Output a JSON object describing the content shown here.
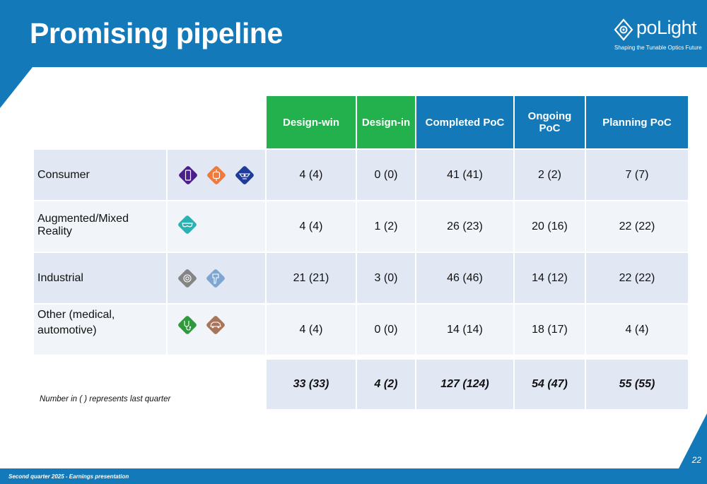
{
  "slide": {
    "title": "Promising pipeline",
    "page_number": "22",
    "footer": "Second quarter 2025 - Earnings presentation",
    "note": "Number in ( ) represents last quarter"
  },
  "logo": {
    "name": "poLight",
    "tagline": "Shaping the Tunable Optics Future"
  },
  "colors": {
    "brand_blue": "#1479b8",
    "design_green": "#22b14c",
    "row_band_dark": "#e1e8f3",
    "row_band_light": "#f1f4f9"
  },
  "table": {
    "columns": [
      "Design-win",
      "Design-in",
      "Completed PoC",
      "Ongoing PoC",
      "Planning PoC"
    ],
    "rows": [
      {
        "segment": "Consumer",
        "icons": [
          {
            "name": "smartphone-icon",
            "color": "#4b1e8c"
          },
          {
            "name": "smartwatch-icon",
            "color": "#f07a3c"
          },
          {
            "name": "webcam-icon",
            "color": "#1f3c99"
          }
        ],
        "values": [
          "4 (4)",
          "0 (0)",
          "41 (41)",
          "2 (2)",
          "7 (7)"
        ]
      },
      {
        "segment": "Augmented/Mixed Reality",
        "icons": [
          {
            "name": "ar-glasses-icon",
            "color": "#2ab2b2"
          }
        ],
        "values": [
          "4 (4)",
          "1 (2)",
          "26 (23)",
          "20 (16)",
          "22 (22)"
        ]
      },
      {
        "segment": "Industrial",
        "icons": [
          {
            "name": "camera-module-icon",
            "color": "#858585"
          },
          {
            "name": "barcode-scanner-icon",
            "color": "#7ea6d1"
          }
        ],
        "values": [
          "21 (21)",
          "3 (0)",
          "46 (46)",
          "14 (12)",
          "22 (22)"
        ]
      },
      {
        "segment": "Other (medical, automotive)",
        "icons": [
          {
            "name": "stethoscope-icon",
            "color": "#2f9a3b"
          },
          {
            "name": "car-icon",
            "color": "#a8755b"
          }
        ],
        "values": [
          "4 (4)",
          "0 (0)",
          "14 (14)",
          "18 (17)",
          "4 (4)"
        ]
      }
    ],
    "totals": [
      "33 (33)",
      "4 (2)",
      "127 (124)",
      "54 (47)",
      "55 (55)"
    ]
  }
}
